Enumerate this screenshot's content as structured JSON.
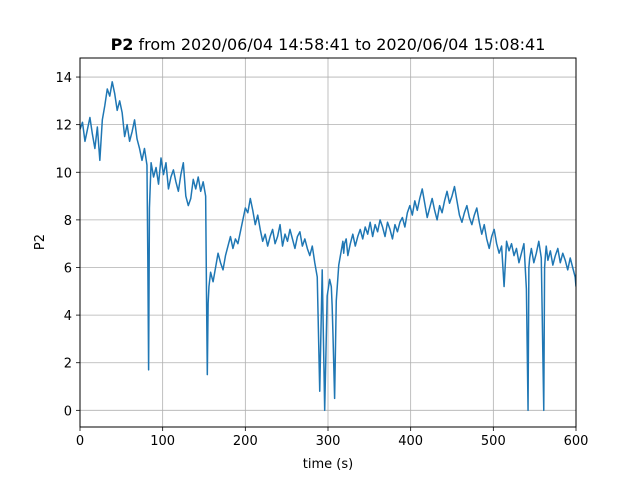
{
  "chart_data": {
    "type": "line",
    "title": {
      "bold": "P2",
      "rest": " from 2020/06/04 14:58:41 to 2020/06/04 15:08:41"
    },
    "xlabel": "time (s)",
    "ylabel": "P2",
    "xlim": [
      0,
      600
    ],
    "ylim": [
      -0.7,
      14.8
    ],
    "xticks": [
      0,
      100,
      200,
      300,
      400,
      500,
      600
    ],
    "yticks": [
      0,
      2,
      4,
      6,
      8,
      10,
      12,
      14
    ],
    "grid": true,
    "line_color": "#1f77b4",
    "series": [
      {
        "x": [
          0,
          3,
          6,
          9,
          12,
          15,
          18,
          21,
          24,
          27,
          30,
          33,
          36,
          39,
          42,
          45,
          48,
          51,
          54,
          57,
          60,
          63,
          66,
          69,
          72,
          75,
          78,
          81,
          82,
          83,
          84,
          86,
          89,
          92,
          95,
          98,
          101,
          104,
          107,
          110,
          113,
          116,
          119,
          122,
          125,
          128,
          131,
          134,
          137,
          140,
          143,
          146,
          149,
          152,
          153,
          154,
          155,
          156,
          158,
          161,
          164,
          167,
          170,
          173,
          176,
          179,
          182,
          185,
          188,
          191,
          194,
          197,
          200,
          203,
          206,
          209,
          212,
          215,
          218,
          221,
          224,
          227,
          230,
          233,
          236,
          239,
          242,
          245,
          248,
          251,
          254,
          257,
          260,
          263,
          266,
          269,
          272,
          275,
          278,
          281,
          284,
          287,
          290,
          293,
          296,
          299,
          302,
          304,
          305,
          306,
          308,
          310,
          313,
          316,
          318,
          319,
          320,
          322,
          324,
          327,
          330,
          333,
          336,
          339,
          342,
          345,
          348,
          351,
          354,
          357,
          360,
          363,
          366,
          369,
          372,
          375,
          378,
          381,
          384,
          387,
          390,
          393,
          396,
          399,
          402,
          405,
          408,
          411,
          414,
          417,
          420,
          423,
          426,
          429,
          432,
          435,
          438,
          441,
          444,
          447,
          450,
          453,
          456,
          459,
          462,
          465,
          468,
          471,
          474,
          477,
          480,
          483,
          486,
          489,
          492,
          495,
          498,
          501,
          504,
          507,
          510,
          513,
          516,
          519,
          522,
          525,
          528,
          531,
          534,
          537,
          540,
          542,
          543,
          544,
          546,
          549,
          552,
          555,
          558,
          561,
          562,
          563,
          564,
          566,
          569,
          572,
          575,
          578,
          581,
          584,
          587,
          590,
          593,
          596,
          599,
          600
        ],
        "y": [
          11.8,
          12.1,
          11.3,
          11.8,
          12.3,
          11.6,
          11.0,
          11.9,
          10.5,
          12.2,
          12.8,
          13.5,
          13.2,
          13.8,
          13.3,
          12.6,
          13.0,
          12.5,
          11.5,
          12.0,
          11.3,
          11.7,
          12.2,
          11.4,
          11.0,
          10.5,
          11.0,
          10.3,
          6.5,
          1.7,
          8.5,
          10.4,
          9.8,
          10.2,
          9.5,
          10.6,
          9.9,
          10.4,
          9.3,
          9.8,
          10.1,
          9.6,
          9.2,
          9.9,
          10.4,
          9.0,
          8.6,
          8.9,
          9.7,
          9.3,
          9.8,
          9.2,
          9.6,
          9.0,
          5.0,
          1.5,
          4.5,
          5.2,
          5.8,
          5.4,
          6.0,
          6.6,
          6.2,
          5.9,
          6.5,
          6.9,
          7.3,
          6.8,
          7.2,
          7.0,
          7.5,
          8.0,
          8.5,
          8.3,
          8.9,
          8.4,
          7.8,
          8.2,
          7.6,
          7.1,
          7.4,
          6.9,
          7.3,
          7.6,
          7.0,
          7.3,
          7.8,
          6.9,
          7.4,
          7.1,
          7.6,
          7.2,
          6.8,
          7.3,
          7.5,
          6.9,
          7.2,
          6.8,
          6.5,
          6.9,
          6.2,
          5.6,
          0.8,
          5.9,
          0.0,
          4.8,
          5.5,
          5.2,
          4.4,
          3.2,
          0.5,
          4.6,
          6.1,
          6.7,
          7.1,
          6.6,
          7.0,
          7.2,
          6.5,
          7.0,
          7.4,
          6.9,
          7.3,
          7.6,
          7.2,
          7.7,
          7.4,
          7.9,
          7.3,
          7.8,
          7.5,
          8.0,
          7.7,
          7.3,
          7.9,
          7.6,
          7.2,
          7.8,
          7.5,
          7.9,
          8.1,
          7.7,
          8.3,
          8.6,
          8.2,
          8.8,
          8.4,
          8.9,
          9.3,
          8.7,
          8.1,
          8.5,
          8.9,
          8.4,
          8.0,
          8.6,
          8.3,
          8.8,
          9.2,
          8.7,
          9.0,
          9.4,
          8.8,
          8.2,
          7.9,
          8.3,
          8.6,
          8.1,
          7.8,
          8.2,
          8.5,
          7.9,
          7.4,
          7.8,
          7.2,
          6.8,
          7.3,
          7.6,
          7.0,
          6.6,
          6.9,
          5.2,
          7.1,
          6.7,
          7.0,
          6.5,
          6.8,
          6.2,
          6.6,
          7.0,
          5.1,
          0.0,
          6.0,
          6.4,
          6.8,
          6.2,
          6.6,
          7.1,
          6.4,
          0.0,
          6.0,
          6.5,
          6.9,
          6.3,
          6.7,
          6.1,
          6.5,
          6.8,
          6.2,
          6.6,
          6.3,
          5.9,
          6.4,
          6.0,
          5.6,
          5.2
        ]
      }
    ]
  }
}
